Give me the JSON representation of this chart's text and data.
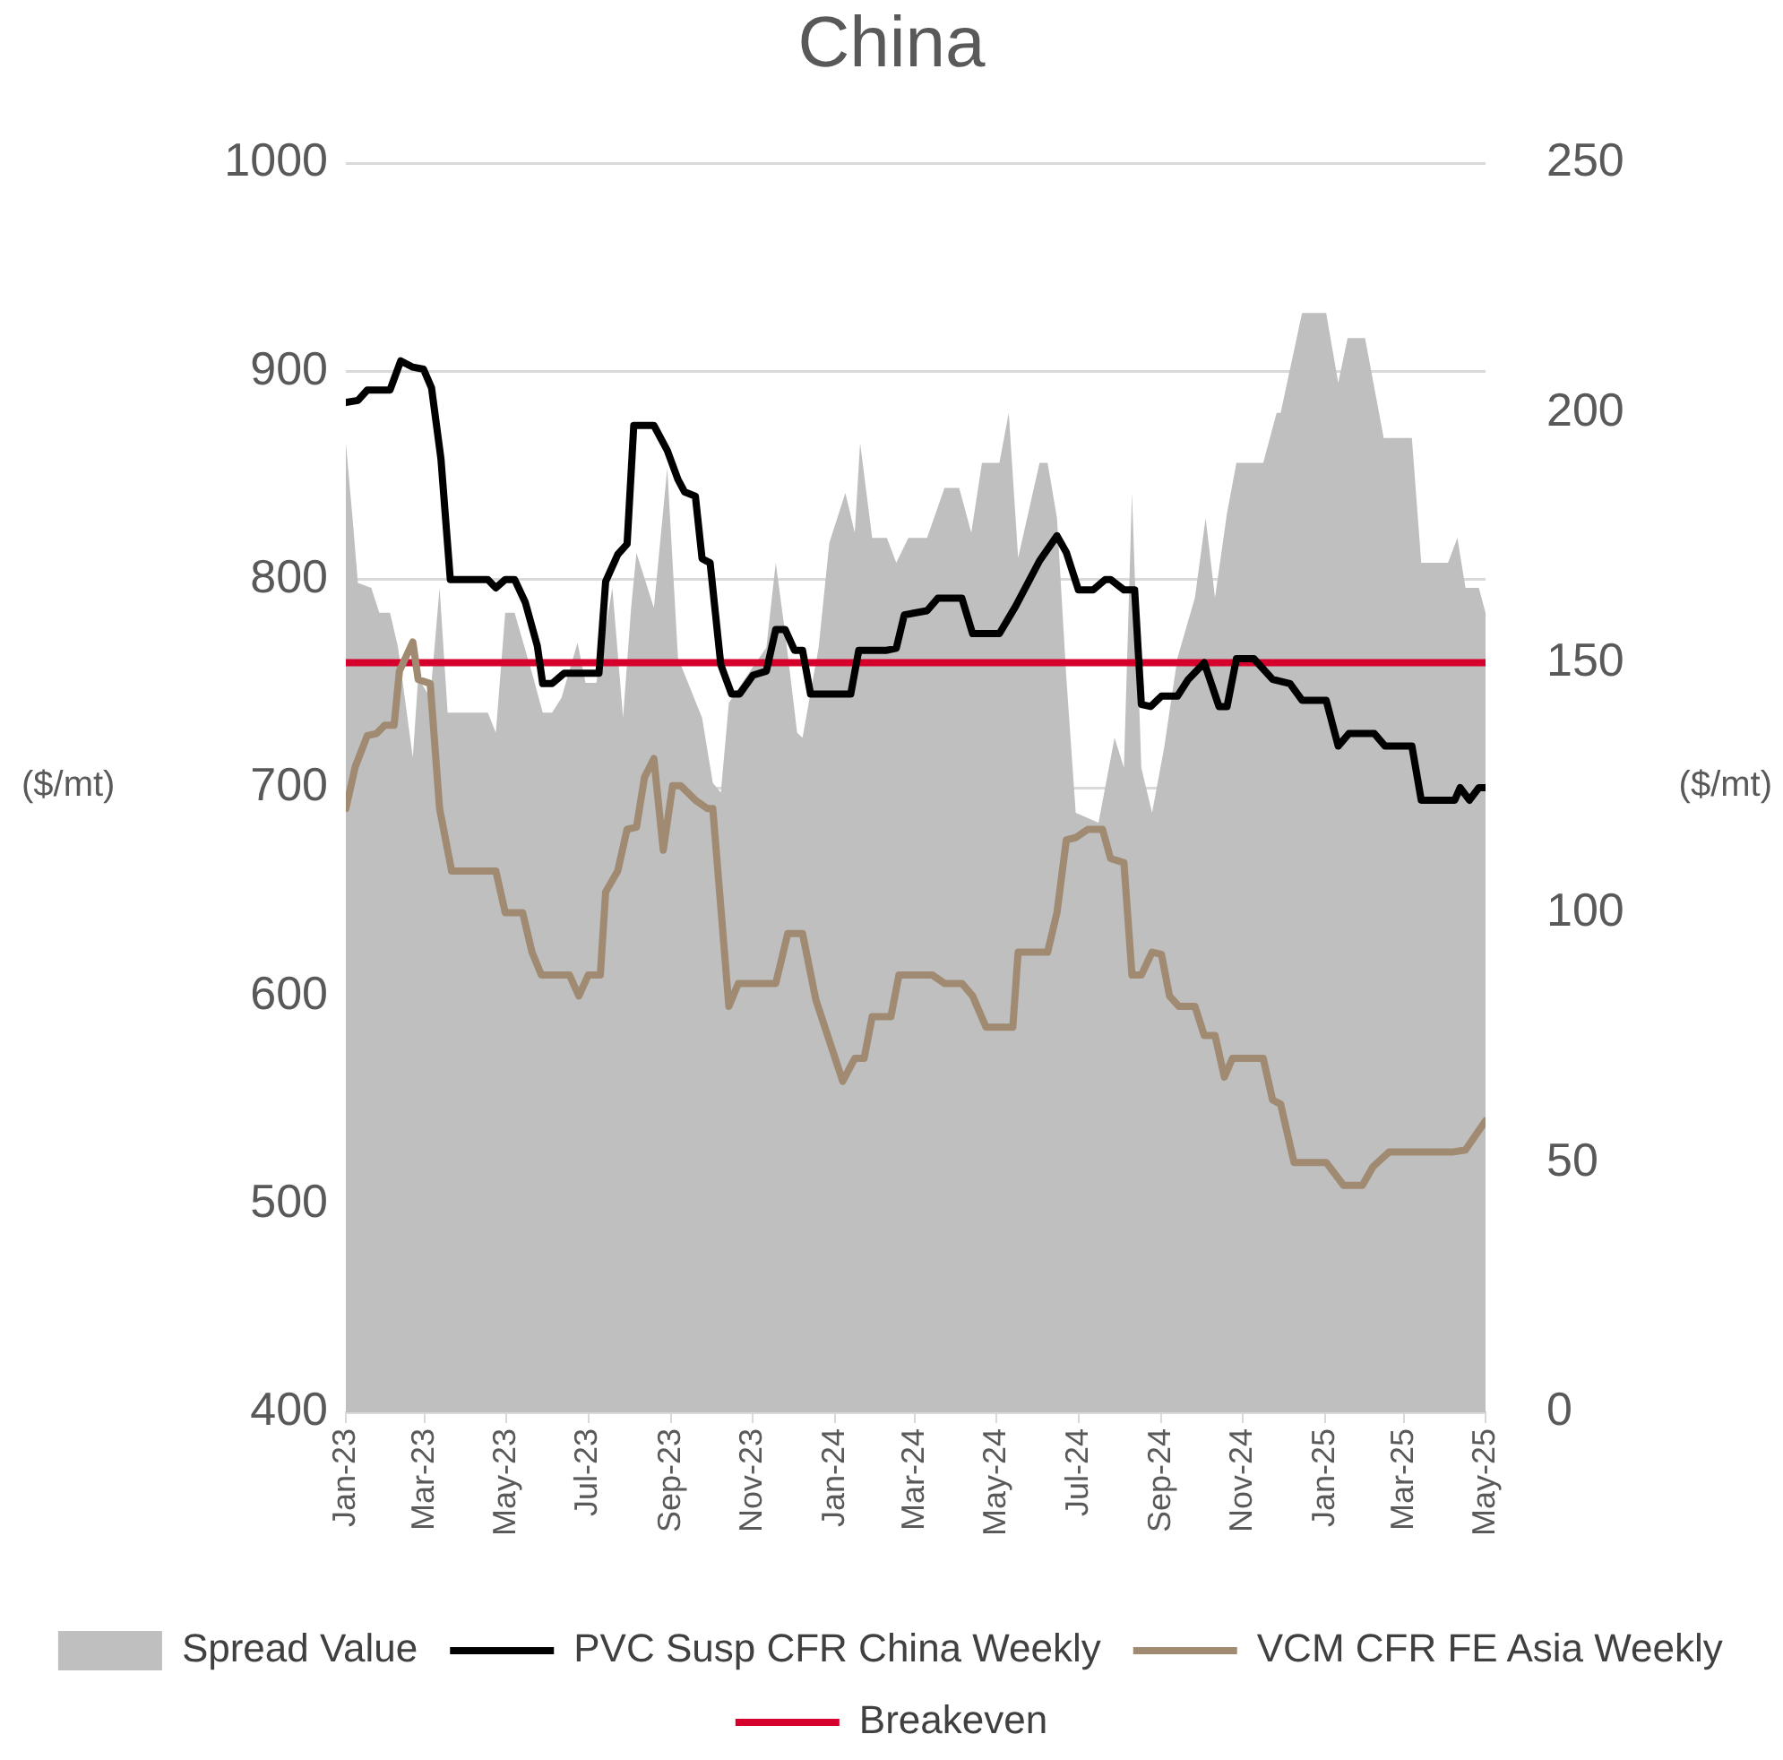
{
  "chart_data": {
    "type": "line",
    "title": "China",
    "ylabel": "($/mt)",
    "y2label": "($/mt)",
    "xlim": [
      "2023-01-01",
      "2025-05-01"
    ],
    "xticks": [
      {
        "value": "2023-01",
        "label": "Jan-23"
      },
      {
        "value": "2023-03",
        "label": "Mar-23"
      },
      {
        "value": "2023-05",
        "label": "May-23"
      },
      {
        "value": "2023-07",
        "label": "Jul-23"
      },
      {
        "value": "2023-09",
        "label": "Sep-23"
      },
      {
        "value": "2023-11",
        "label": "Nov-23"
      },
      {
        "value": "2024-01",
        "label": "Jan-24"
      },
      {
        "value": "2024-03",
        "label": "Mar-24"
      },
      {
        "value": "2024-05",
        "label": "May-24"
      },
      {
        "value": "2024-07",
        "label": "Jul-24"
      },
      {
        "value": "2024-09",
        "label": "Sep-24"
      },
      {
        "value": "2024-11",
        "label": "Nov-24"
      },
      {
        "value": "2025-01",
        "label": "Jan-25"
      },
      {
        "value": "2025-03",
        "label": "Mar-25"
      },
      {
        "value": "2025-05",
        "label": "May-25"
      }
    ],
    "ylim": [
      400,
      1000
    ],
    "yticks": [
      400,
      500,
      600,
      700,
      800,
      900,
      1000
    ],
    "y2lim": [
      0,
      250
    ],
    "y2ticks": [
      0,
      50,
      100,
      150,
      200,
      250
    ],
    "grid": "y",
    "legend": "bottom",
    "ref_lines": [
      {
        "axis": "y",
        "value": 760,
        "label": "Breakeven",
        "color": "#d5002b"
      }
    ],
    "series": [
      {
        "name": "Spread Value",
        "type": "area",
        "axis": "y2",
        "color": "#bfbfbf",
        "x": [
          "2023-01-01",
          "2023-01-06",
          "2023-01-10",
          "2023-01-20",
          "2023-01-26",
          "2023-02-03",
          "2023-02-09",
          "2023-02-20",
          "2023-02-24",
          "2023-03-05",
          "2023-03-12",
          "2023-03-18",
          "2023-04-17",
          "2023-04-23",
          "2023-04-30",
          "2023-05-07",
          "2023-05-21",
          "2023-05-28",
          "2023-06-04",
          "2023-06-11",
          "2023-06-23",
          "2023-06-29",
          "2023-07-07",
          "2023-07-19",
          "2023-07-27",
          "2023-08-02",
          "2023-08-06",
          "2023-08-19",
          "2023-08-29",
          "2023-09-06",
          "2023-09-18",
          "2023-09-24",
          "2023-10-02",
          "2023-10-08",
          "2023-10-14",
          "2023-10-29",
          "2023-11-11",
          "2023-11-18",
          "2023-11-25",
          "2023-12-04",
          "2023-12-08",
          "2023-12-20",
          "2023-12-28",
          "2024-01-09",
          "2024-01-16",
          "2024-01-20",
          "2024-01-29",
          "2024-02-09",
          "2024-02-16",
          "2024-02-25",
          "2024-03-10",
          "2024-03-23",
          "2024-04-03",
          "2024-04-12",
          "2024-04-20",
          "2024-05-03",
          "2024-05-10",
          "2024-05-17",
          "2024-06-02",
          "2024-06-08",
          "2024-06-15",
          "2024-06-22",
          "2024-06-29",
          "2024-07-16",
          "2024-07-28",
          "2024-08-04",
          "2024-08-10",
          "2024-08-17",
          "2024-08-25",
          "2024-09-03",
          "2024-09-13",
          "2024-09-26",
          "2024-10-04",
          "2024-10-11",
          "2024-10-20",
          "2024-10-27",
          "2024-11-16",
          "2024-11-26",
          "2024-11-29",
          "2024-12-15",
          "2025-01-02",
          "2025-01-11",
          "2025-01-18",
          "2025-01-31",
          "2025-02-14",
          "2025-03-07",
          "2025-03-14",
          "2025-04-03",
          "2025-04-10",
          "2025-04-16",
          "2025-04-26",
          "2025-05-01"
        ],
        "values": [
          194,
          179,
          166,
          165,
          160,
          160,
          153,
          131,
          147,
          143,
          165,
          140,
          140,
          136,
          160,
          160,
          147,
          140,
          140,
          143,
          154,
          146,
          146,
          165,
          139,
          161,
          172,
          161,
          189,
          151,
          143,
          139,
          126,
          124,
          142,
          148,
          153,
          170,
          156,
          136,
          135,
          153,
          174,
          184,
          176,
          194,
          175,
          175,
          170,
          175,
          175,
          185,
          185,
          176,
          190,
          190,
          200,
          171,
          190,
          190,
          179,
          147,
          120,
          118,
          135,
          129,
          184,
          129,
          120,
          133,
          151,
          163,
          179,
          163,
          180,
          190,
          190,
          200,
          200,
          220,
          220,
          206,
          215,
          215,
          195,
          195,
          170,
          170,
          175,
          165,
          165,
          160
        ]
      },
      {
        "name": "PVC Susp CFR China Weekly",
        "color": "#000000",
        "x": [
          "2023-01-01",
          "2023-01-10",
          "2023-01-17",
          "2023-02-03",
          "2023-02-11",
          "2023-02-20",
          "2023-02-28",
          "2023-03-06",
          "2023-03-13",
          "2023-03-20",
          "2023-04-17",
          "2023-04-23",
          "2023-04-30",
          "2023-05-07",
          "2023-05-15",
          "2023-05-24",
          "2023-05-28",
          "2023-06-04",
          "2023-06-13",
          "2023-07-09",
          "2023-07-14",
          "2023-07-23",
          "2023-07-30",
          "2023-08-04",
          "2023-08-19",
          "2023-08-29",
          "2023-09-06",
          "2023-09-11",
          "2023-09-19",
          "2023-09-24",
          "2023-09-30",
          "2023-10-08",
          "2023-10-16",
          "2023-10-22",
          "2023-11-01",
          "2023-11-11",
          "2023-11-18",
          "2023-11-25",
          "2023-12-02",
          "2023-12-08",
          "2023-12-14",
          "2024-01-13",
          "2024-01-19",
          "2024-02-09",
          "2024-02-16",
          "2024-02-22",
          "2024-03-10",
          "2024-03-18",
          "2024-04-05",
          "2024-04-13",
          "2024-05-03",
          "2024-05-15",
          "2024-06-02",
          "2024-06-15",
          "2024-06-22",
          "2024-07-01",
          "2024-07-12",
          "2024-07-21",
          "2024-07-25",
          "2024-08-04",
          "2024-08-12",
          "2024-08-17",
          "2024-08-24",
          "2024-09-01",
          "2024-09-13",
          "2024-09-21",
          "2024-10-03",
          "2024-10-14",
          "2024-10-20",
          "2024-10-27",
          "2024-11-09",
          "2024-11-23",
          "2024-12-06",
          "2024-12-15",
          "2025-01-02",
          "2025-01-11",
          "2025-01-19",
          "2025-02-07",
          "2025-02-15",
          "2025-03-07",
          "2025-03-14",
          "2025-04-08",
          "2025-04-12",
          "2025-04-19",
          "2025-04-26",
          "2025-05-01"
        ],
        "values": [
          885,
          886,
          891,
          891,
          905,
          902,
          901,
          892,
          858,
          800,
          800,
          796,
          800,
          800,
          789,
          768,
          750,
          750,
          755,
          755,
          799,
          812,
          817,
          874,
          874,
          862,
          848,
          842,
          840,
          810,
          808,
          759,
          745,
          745,
          754,
          756,
          776,
          776,
          766,
          766,
          745,
          745,
          766,
          766,
          767,
          783,
          785,
          791,
          791,
          774,
          774,
          787,
          809,
          821,
          813,
          795,
          795,
          800,
          800,
          795,
          795,
          740,
          739,
          744,
          744,
          752,
          760,
          739,
          739,
          762,
          762,
          752,
          750,
          742,
          742,
          720,
          726,
          726,
          720,
          720,
          694,
          694,
          700,
          694,
          700,
          700
        ]
      },
      {
        "name": "VCM CFR FE Asia Weekly",
        "color": "#a08b72",
        "x": [
          "2023-01-01",
          "2023-01-08",
          "2023-01-17",
          "2023-01-24",
          "2023-01-30",
          "2023-02-06",
          "2023-02-10",
          "2023-02-20",
          "2023-02-24",
          "2023-03-05",
          "2023-03-12",
          "2023-03-21",
          "2023-04-23",
          "2023-04-30",
          "2023-05-13",
          "2023-05-20",
          "2023-05-27",
          "2023-06-17",
          "2023-06-24",
          "2023-07-01",
          "2023-07-10",
          "2023-07-14",
          "2023-07-23",
          "2023-07-30",
          "2023-08-06",
          "2023-08-12",
          "2023-08-19",
          "2023-08-26",
          "2023-09-02",
          "2023-09-08",
          "2023-09-19",
          "2023-09-28",
          "2023-10-02",
          "2023-10-14",
          "2023-10-21",
          "2023-11-18",
          "2023-11-27",
          "2023-12-08",
          "2023-12-18",
          "2024-01-07",
          "2024-01-16",
          "2024-01-23",
          "2024-01-29",
          "2024-02-12",
          "2024-02-18",
          "2024-03-14",
          "2024-03-23",
          "2024-04-05",
          "2024-04-13",
          "2024-04-23",
          "2024-05-13",
          "2024-05-17",
          "2024-06-08",
          "2024-06-15",
          "2024-06-22",
          "2024-06-29",
          "2024-07-08",
          "2024-07-19",
          "2024-07-25",
          "2024-08-04",
          "2024-08-10",
          "2024-08-17",
          "2024-08-25",
          "2024-09-01",
          "2024-09-07",
          "2024-09-14",
          "2024-09-26",
          "2024-10-03",
          "2024-10-11",
          "2024-10-18",
          "2024-10-24",
          "2024-11-16",
          "2024-11-23",
          "2024-11-29",
          "2024-12-09",
          "2025-01-02",
          "2025-01-15",
          "2025-01-29",
          "2025-02-06",
          "2025-02-18",
          "2025-04-06",
          "2025-04-16",
          "2025-05-01"
        ],
        "values": [
          690,
          710,
          725,
          726,
          730,
          730,
          756,
          770,
          752,
          750,
          690,
          660,
          660,
          640,
          640,
          621,
          610,
          610,
          600,
          610,
          610,
          650,
          660,
          680,
          681,
          705,
          714,
          670,
          701,
          701,
          694,
          690,
          690,
          595,
          606,
          606,
          630,
          630,
          598,
          559,
          570,
          570,
          590,
          590,
          610,
          610,
          606,
          606,
          600,
          585,
          585,
          621,
          621,
          640,
          675,
          676,
          680,
          680,
          666,
          664,
          610,
          610,
          621,
          620,
          600,
          595,
          595,
          581,
          581,
          561,
          570,
          570,
          550,
          548,
          520,
          520,
          509,
          509,
          518,
          525,
          525,
          526,
          540
        ]
      }
    ]
  }
}
